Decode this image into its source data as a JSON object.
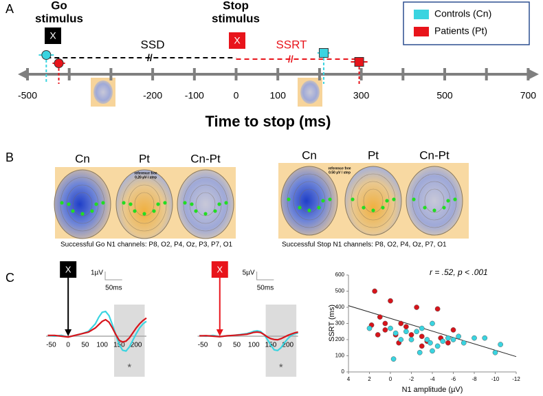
{
  "panel_labels": [
    "A",
    "B",
    "C"
  ],
  "chart_data": [
    {
      "type": "timeline",
      "xlabel": "Time to stop (ms)",
      "xlim": [
        -550,
        750
      ],
      "xticks": [
        -500,
        -200,
        -100,
        0,
        100,
        300,
        500,
        700
      ],
      "minor_xticks": [
        -400,
        -300,
        200,
        400,
        600
      ],
      "go_label": [
        "Go",
        "stimulus"
      ],
      "stop_label": [
        "Stop",
        "stimulus"
      ],
      "stimulus_symbol": "X",
      "ssd_label": "SSD",
      "ssrt_label": "SSRT",
      "series": [
        {
          "name": "Controls (Cn)",
          "color": "#3ad4e0",
          "go": -455,
          "go_error": 18,
          "stop": 210,
          "stop_error": 15
        },
        {
          "name": "Patients (Pt)",
          "color": "#e8141b",
          "go": -425,
          "stop": 295,
          "go_error": 15,
          "stop_error": 20
        }
      ]
    },
    {
      "type": "line",
      "x": [
        -60,
        -40,
        -20,
        0,
        20,
        40,
        60,
        80,
        90,
        100,
        110,
        120,
        130,
        140,
        150,
        160,
        170,
        180,
        190,
        200,
        210,
        220,
        230
      ],
      "xlim": [
        -65,
        230
      ],
      "ylim": [
        -4,
        4
      ],
      "xticks": [
        -50,
        0,
        50,
        100,
        150,
        200
      ],
      "highlight": [
        135,
        225
      ],
      "scale_bar": {
        "y": 1,
        "x": 50,
        "y_label": "1µV",
        "x_label": "50ms"
      },
      "annotation": "*",
      "stimulus_symbol": "X",
      "stimulus_color": "#000000",
      "series": [
        {
          "color": "#3ad4e0",
          "values": [
            0.1,
            0,
            0.1,
            -0.1,
            0.1,
            0.3,
            0.6,
            1.5,
            2.3,
            2.9,
            3.0,
            2.5,
            1.4,
            0.2,
            -1.0,
            -1.7,
            -1.8,
            -1.3,
            -0.5,
            0.3,
            1.0,
            1.5,
            1.8
          ]
        },
        {
          "color": "#d7141b",
          "values": [
            0.1,
            0.1,
            0,
            -0.1,
            0.1,
            0.3,
            0.5,
            1.0,
            1.4,
            1.8,
            2.0,
            1.7,
            1.0,
            0.2,
            -0.5,
            -0.7,
            -0.6,
            -0.2,
            0.4,
            1.0,
            1.5,
            1.9,
            2.2
          ]
        }
      ]
    },
    {
      "type": "line",
      "x": [
        -60,
        -40,
        -20,
        0,
        20,
        40,
        60,
        80,
        90,
        100,
        110,
        120,
        130,
        140,
        150,
        160,
        170,
        180,
        190,
        200,
        210,
        220,
        230
      ],
      "xlim": [
        -65,
        230
      ],
      "ylim": [
        -20,
        20
      ],
      "xticks": [
        -50,
        0,
        50,
        100,
        150,
        200
      ],
      "highlight": [
        135,
        225
      ],
      "scale_bar": {
        "y": 5,
        "x": 50,
        "y_label": "5µV",
        "x_label": "50ms"
      },
      "annotation": "*",
      "stimulus_symbol": "X",
      "stimulus_color": "#e8141b",
      "series": [
        {
          "color": "#3ad4e0",
          "values": [
            0.3,
            0,
            0.5,
            -0.2,
            0.2,
            0.5,
            1.0,
            1.6,
            2.2,
            3.0,
            3.3,
            2.8,
            1.0,
            -2,
            -5.5,
            -8.3,
            -8.7,
            -7,
            -4,
            -1.5,
            0.5,
            1.5,
            2.0
          ]
        },
        {
          "color": "#d7141b",
          "values": [
            0.2,
            0.3,
            0,
            -0.3,
            0.2,
            0.5,
            0.8,
            1.2,
            1.7,
            2.3,
            2.5,
            2.2,
            1.0,
            -0.5,
            -1.5,
            -2,
            -2.2,
            -1.5,
            -0.5,
            0.5,
            1.3,
            2.0,
            2.5
          ]
        }
      ]
    },
    {
      "type": "scatter",
      "xlabel": "N1 amplitude (µV)",
      "ylabel": "SSRT (ms)",
      "annotation": "r = .52, p < .001",
      "xlim": [
        4,
        -12
      ],
      "ylim": [
        0,
        600
      ],
      "xticks": [
        4,
        2,
        0,
        -2,
        -4,
        -6,
        -8,
        -10,
        -12
      ],
      "yticks": [
        0,
        100,
        200,
        300,
        400,
        500,
        600
      ],
      "fit": {
        "x": [
          4,
          -12
        ],
        "y": [
          410,
          95
        ]
      },
      "series": [
        {
          "color": "#d7141b",
          "x": [
            1.5,
            0,
            -2.5,
            -4.5,
            1,
            0.5,
            -1,
            -1.5,
            0.5,
            1.2,
            -0.5,
            -2,
            -3,
            -3.5,
            -4.8,
            -5.5,
            -3,
            -0.8,
            -6,
            1.8
          ],
          "values": [
            500,
            440,
            400,
            390,
            340,
            300,
            300,
            280,
            260,
            230,
            230,
            230,
            220,
            190,
            210,
            180,
            160,
            180,
            260,
            290
          ]
        },
        {
          "color": "#3ad4e0",
          "x": [
            -1.5,
            -2.5,
            -3,
            -4,
            0,
            -0.5,
            -1,
            -2,
            -3.5,
            -3.8,
            -4.5,
            -5.5,
            -6,
            -6.5,
            -7,
            -8,
            -9,
            -10.5,
            -10,
            -0.3,
            -4,
            -5,
            -2.8,
            2
          ],
          "values": [
            250,
            250,
            270,
            300,
            270,
            240,
            200,
            200,
            200,
            180,
            160,
            210,
            200,
            220,
            180,
            210,
            210,
            170,
            120,
            80,
            130,
            190,
            120,
            270
          ]
        }
      ]
    }
  ],
  "head_maps": [
    {
      "titles": [
        "Cn",
        "Pt",
        "Cn-Pt"
      ],
      "note": [
        "reference free",
        "0.20 µV / step"
      ],
      "caption": "Successful Go N1 channels: P8, O2, P4, Oz, P3, P7, O1"
    },
    {
      "titles": [
        "Cn",
        "Pt",
        "Cn-Pt"
      ],
      "note": [
        "reference free",
        "0.50 µV / step"
      ],
      "caption": "Successful Stop N1 channels: P8, O2, P4, Oz, P7, O1"
    }
  ]
}
